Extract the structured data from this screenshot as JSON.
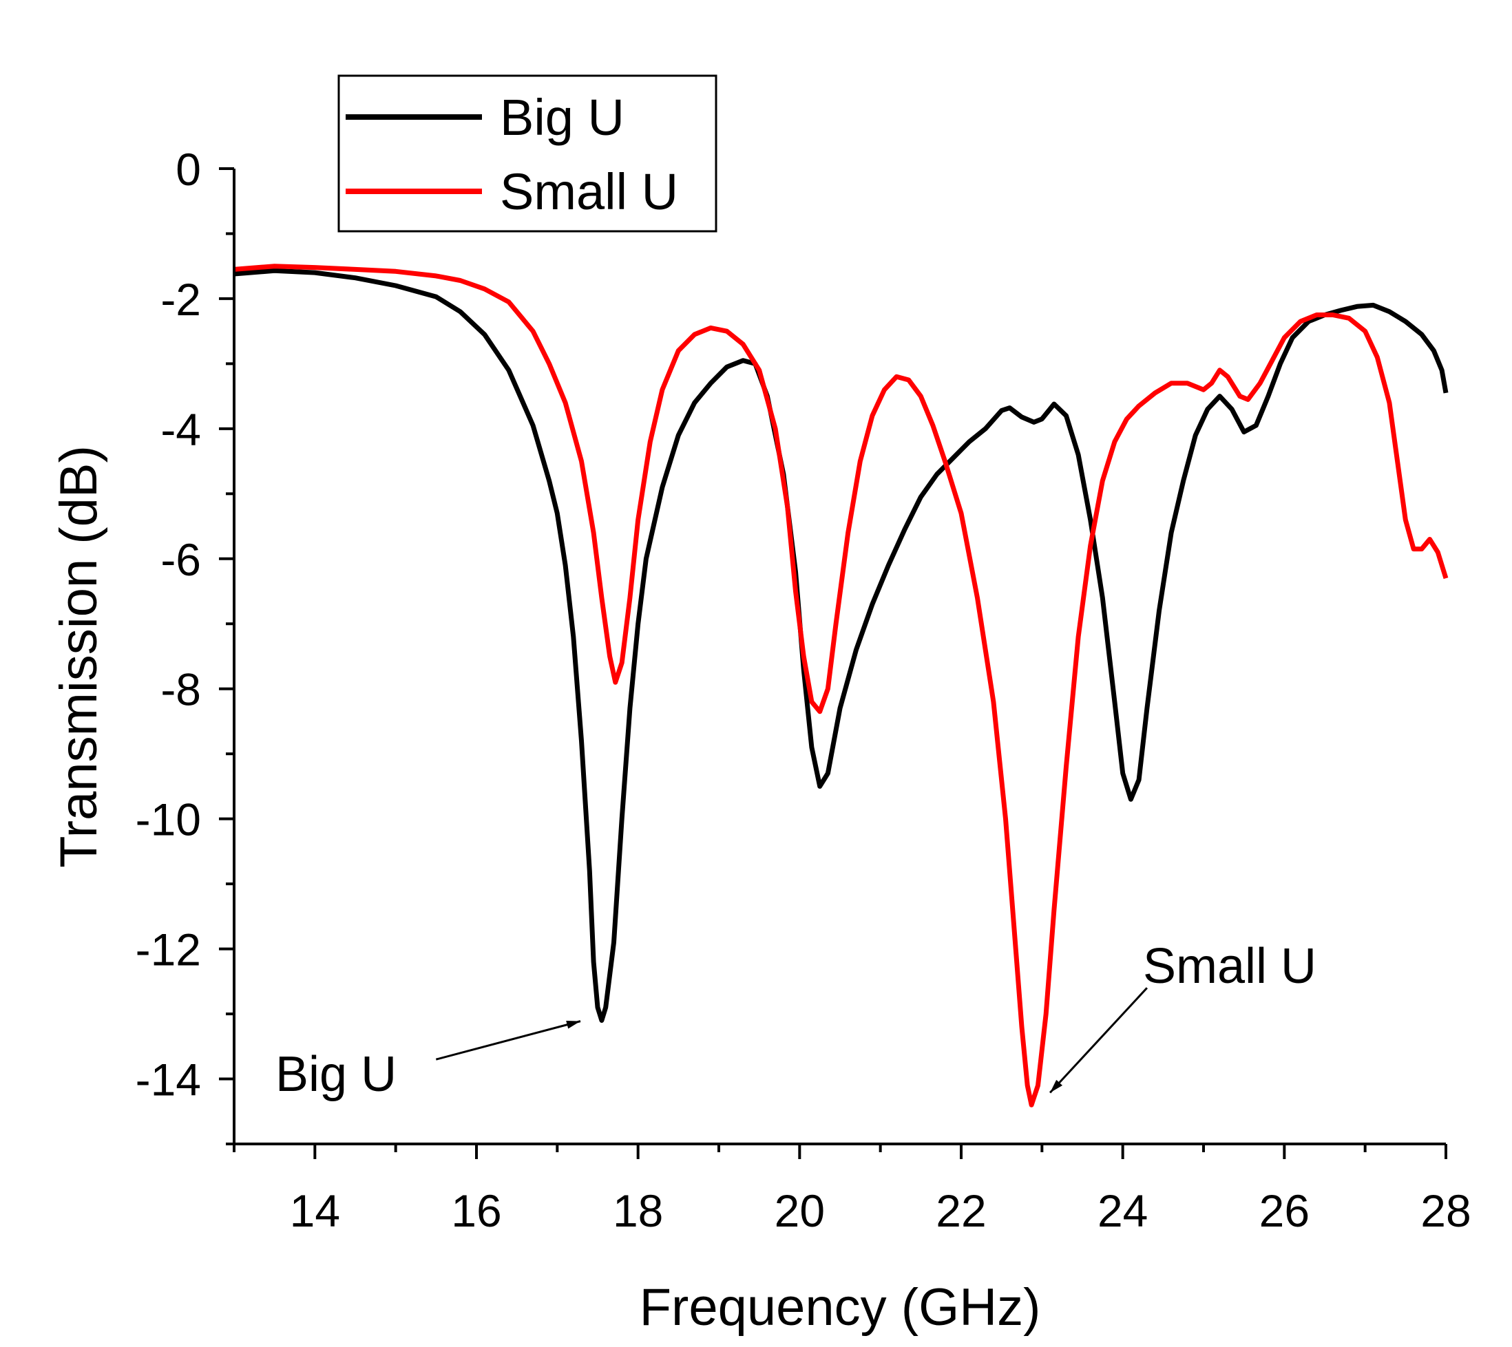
{
  "chart_data": {
    "type": "line",
    "title": "",
    "xlabel": "Frequency (GHz)",
    "ylabel": "Transmission (dB)",
    "xlim": [
      13,
      28
    ],
    "ylim": [
      -15,
      0
    ],
    "xticks": [
      14,
      16,
      18,
      20,
      22,
      24,
      26,
      28
    ],
    "yticks": [
      0,
      -2,
      -4,
      -6,
      -8,
      -10,
      -12,
      -14
    ],
    "grid": false,
    "legend_position": "top-left",
    "legend": [
      "Big U",
      "Small U"
    ],
    "series": [
      {
        "name": "Big U",
        "color": "#000000",
        "points": [
          [
            13.0,
            -1.62
          ],
          [
            13.5,
            -1.57
          ],
          [
            14.0,
            -1.6
          ],
          [
            14.5,
            -1.68
          ],
          [
            15.0,
            -1.8
          ],
          [
            15.5,
            -1.97
          ],
          [
            15.8,
            -2.2
          ],
          [
            16.1,
            -2.55
          ],
          [
            16.4,
            -3.1
          ],
          [
            16.7,
            -3.95
          ],
          [
            16.9,
            -4.8
          ],
          [
            17.0,
            -5.3
          ],
          [
            17.1,
            -6.1
          ],
          [
            17.2,
            -7.2
          ],
          [
            17.3,
            -8.8
          ],
          [
            17.4,
            -10.8
          ],
          [
            17.45,
            -12.2
          ],
          [
            17.5,
            -12.9
          ],
          [
            17.55,
            -13.1
          ],
          [
            17.6,
            -12.9
          ],
          [
            17.7,
            -11.9
          ],
          [
            17.8,
            -10.0
          ],
          [
            17.9,
            -8.3
          ],
          [
            18.0,
            -7.0
          ],
          [
            18.1,
            -6.0
          ],
          [
            18.3,
            -4.9
          ],
          [
            18.5,
            -4.1
          ],
          [
            18.7,
            -3.6
          ],
          [
            18.9,
            -3.3
          ],
          [
            19.1,
            -3.05
          ],
          [
            19.3,
            -2.95
          ],
          [
            19.45,
            -3.0
          ],
          [
            19.6,
            -3.5
          ],
          [
            19.8,
            -4.7
          ],
          [
            19.95,
            -6.2
          ],
          [
            20.05,
            -7.7
          ],
          [
            20.15,
            -8.9
          ],
          [
            20.25,
            -9.5
          ],
          [
            20.35,
            -9.3
          ],
          [
            20.5,
            -8.3
          ],
          [
            20.7,
            -7.4
          ],
          [
            20.9,
            -6.7
          ],
          [
            21.1,
            -6.1
          ],
          [
            21.3,
            -5.55
          ],
          [
            21.5,
            -5.05
          ],
          [
            21.7,
            -4.7
          ],
          [
            21.9,
            -4.45
          ],
          [
            22.1,
            -4.2
          ],
          [
            22.3,
            -4.0
          ],
          [
            22.5,
            -3.72
          ],
          [
            22.6,
            -3.68
          ],
          [
            22.75,
            -3.82
          ],
          [
            22.9,
            -3.9
          ],
          [
            23.0,
            -3.85
          ],
          [
            23.15,
            -3.62
          ],
          [
            23.3,
            -3.8
          ],
          [
            23.45,
            -4.4
          ],
          [
            23.6,
            -5.4
          ],
          [
            23.75,
            -6.6
          ],
          [
            23.9,
            -8.2
          ],
          [
            24.0,
            -9.3
          ],
          [
            24.1,
            -9.7
          ],
          [
            24.2,
            -9.4
          ],
          [
            24.3,
            -8.3
          ],
          [
            24.45,
            -6.8
          ],
          [
            24.6,
            -5.6
          ],
          [
            24.75,
            -4.8
          ],
          [
            24.9,
            -4.1
          ],
          [
            25.05,
            -3.7
          ],
          [
            25.2,
            -3.5
          ],
          [
            25.35,
            -3.7
          ],
          [
            25.5,
            -4.05
          ],
          [
            25.65,
            -3.95
          ],
          [
            25.8,
            -3.5
          ],
          [
            25.95,
            -3.0
          ],
          [
            26.1,
            -2.6
          ],
          [
            26.3,
            -2.35
          ],
          [
            26.5,
            -2.25
          ],
          [
            26.7,
            -2.18
          ],
          [
            26.9,
            -2.12
          ],
          [
            27.1,
            -2.1
          ],
          [
            27.3,
            -2.2
          ],
          [
            27.5,
            -2.35
          ],
          [
            27.7,
            -2.55
          ],
          [
            27.85,
            -2.8
          ],
          [
            27.95,
            -3.1
          ],
          [
            28.0,
            -3.45
          ]
        ]
      },
      {
        "name": "Small U",
        "color": "#ff0000",
        "points": [
          [
            13.0,
            -1.55
          ],
          [
            13.5,
            -1.5
          ],
          [
            14.0,
            -1.52
          ],
          [
            14.5,
            -1.55
          ],
          [
            15.0,
            -1.58
          ],
          [
            15.5,
            -1.65
          ],
          [
            15.8,
            -1.72
          ],
          [
            16.1,
            -1.85
          ],
          [
            16.4,
            -2.05
          ],
          [
            16.7,
            -2.5
          ],
          [
            16.9,
            -3.0
          ],
          [
            17.1,
            -3.6
          ],
          [
            17.3,
            -4.5
          ],
          [
            17.45,
            -5.6
          ],
          [
            17.55,
            -6.6
          ],
          [
            17.65,
            -7.5
          ],
          [
            17.72,
            -7.9
          ],
          [
            17.8,
            -7.6
          ],
          [
            17.9,
            -6.6
          ],
          [
            18.0,
            -5.4
          ],
          [
            18.15,
            -4.2
          ],
          [
            18.3,
            -3.4
          ],
          [
            18.5,
            -2.8
          ],
          [
            18.7,
            -2.55
          ],
          [
            18.9,
            -2.45
          ],
          [
            19.1,
            -2.5
          ],
          [
            19.3,
            -2.7
          ],
          [
            19.5,
            -3.1
          ],
          [
            19.7,
            -4.0
          ],
          [
            19.85,
            -5.2
          ],
          [
            19.95,
            -6.5
          ],
          [
            20.05,
            -7.5
          ],
          [
            20.15,
            -8.2
          ],
          [
            20.25,
            -8.35
          ],
          [
            20.35,
            -8.0
          ],
          [
            20.45,
            -7.0
          ],
          [
            20.6,
            -5.6
          ],
          [
            20.75,
            -4.5
          ],
          [
            20.9,
            -3.8
          ],
          [
            21.05,
            -3.4
          ],
          [
            21.2,
            -3.2
          ],
          [
            21.35,
            -3.25
          ],
          [
            21.5,
            -3.5
          ],
          [
            21.65,
            -3.95
          ],
          [
            21.8,
            -4.5
          ],
          [
            22.0,
            -5.3
          ],
          [
            22.2,
            -6.6
          ],
          [
            22.4,
            -8.2
          ],
          [
            22.55,
            -10.0
          ],
          [
            22.65,
            -11.6
          ],
          [
            22.75,
            -13.2
          ],
          [
            22.82,
            -14.1
          ],
          [
            22.87,
            -14.4
          ],
          [
            22.95,
            -14.1
          ],
          [
            23.05,
            -13.0
          ],
          [
            23.15,
            -11.4
          ],
          [
            23.3,
            -9.2
          ],
          [
            23.45,
            -7.2
          ],
          [
            23.6,
            -5.8
          ],
          [
            23.75,
            -4.8
          ],
          [
            23.9,
            -4.2
          ],
          [
            24.05,
            -3.85
          ],
          [
            24.2,
            -3.65
          ],
          [
            24.4,
            -3.45
          ],
          [
            24.6,
            -3.3
          ],
          [
            24.8,
            -3.3
          ],
          [
            25.0,
            -3.4
          ],
          [
            25.1,
            -3.3
          ],
          [
            25.2,
            -3.1
          ],
          [
            25.3,
            -3.2
          ],
          [
            25.45,
            -3.5
          ],
          [
            25.55,
            -3.55
          ],
          [
            25.7,
            -3.3
          ],
          [
            25.85,
            -2.95
          ],
          [
            26.0,
            -2.6
          ],
          [
            26.2,
            -2.35
          ],
          [
            26.4,
            -2.25
          ],
          [
            26.6,
            -2.25
          ],
          [
            26.8,
            -2.3
          ],
          [
            27.0,
            -2.5
          ],
          [
            27.15,
            -2.9
          ],
          [
            27.3,
            -3.6
          ],
          [
            27.4,
            -4.5
          ],
          [
            27.5,
            -5.4
          ],
          [
            27.6,
            -5.85
          ],
          [
            27.7,
            -5.85
          ],
          [
            27.8,
            -5.7
          ],
          [
            27.9,
            -5.9
          ],
          [
            28.0,
            -6.3
          ]
        ]
      }
    ],
    "annotations": [
      {
        "text": "Big U",
        "target": [
          17.5,
          -12.9
        ],
        "from": [
          15.5,
          -13.7
        ]
      },
      {
        "text": "Small U",
        "target": [
          23.1,
          -14.0
        ],
        "from": [
          24.3,
          -12.6
        ]
      }
    ]
  }
}
